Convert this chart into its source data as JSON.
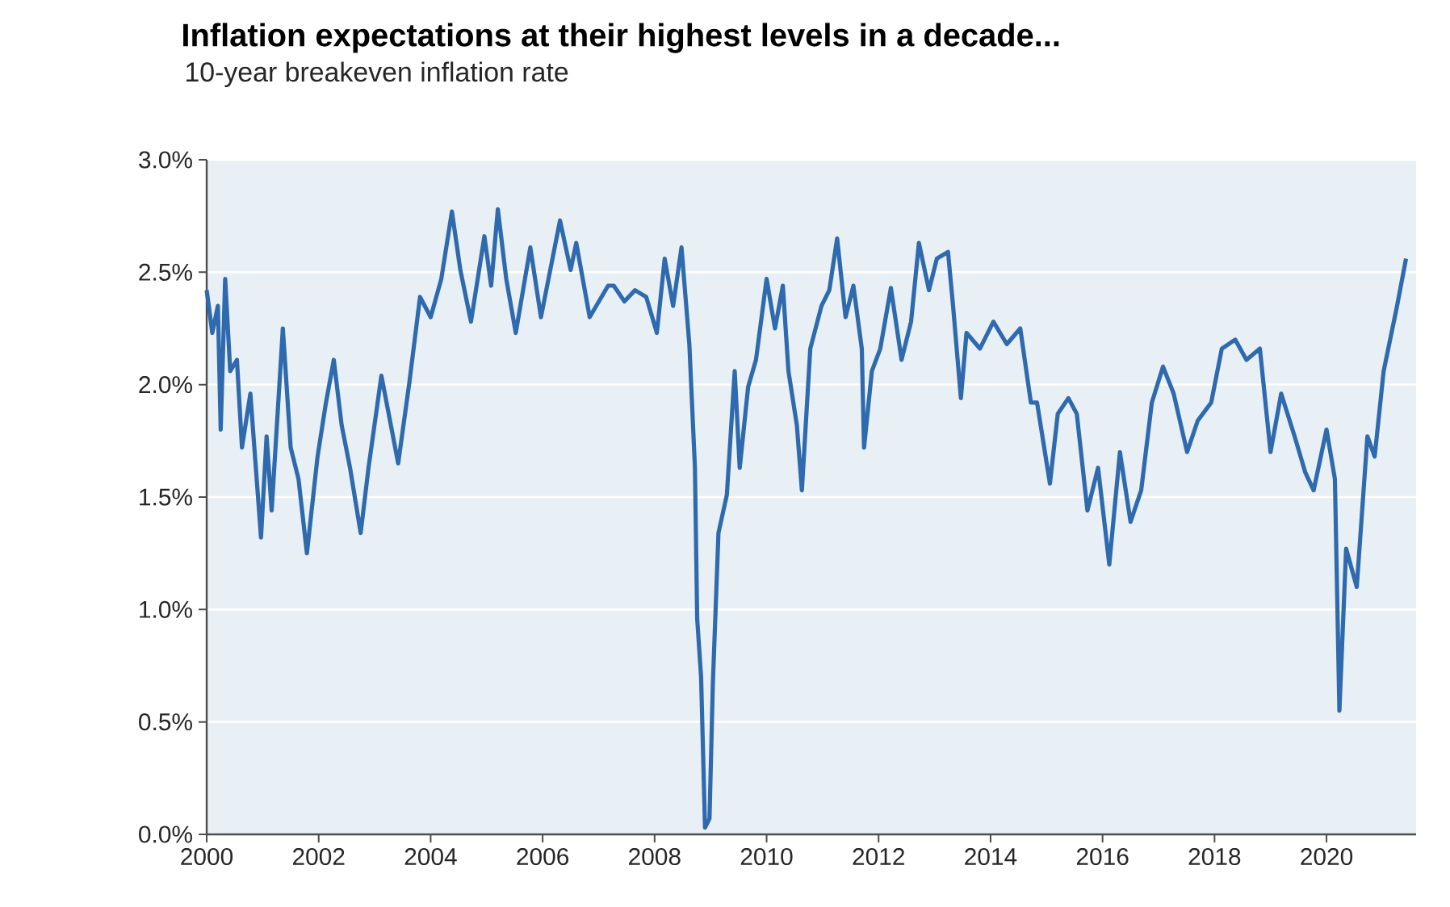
{
  "chart_data": {
    "type": "line",
    "title": "Inflation expectations at their highest levels in a decade...",
    "subtitle": "10-year breakeven inflation rate",
    "x": [
      2000.0,
      2000.1,
      2000.2,
      2000.25,
      2000.33,
      2000.42,
      2000.54,
      2000.63,
      2000.78,
      2000.97,
      2001.07,
      2001.16,
      2001.36,
      2001.5,
      2001.64,
      2001.79,
      2001.98,
      2002.13,
      2002.27,
      2002.41,
      2002.56,
      2002.75,
      2002.89,
      2003.12,
      2003.42,
      2003.62,
      2003.81,
      2004.0,
      2004.19,
      2004.38,
      2004.53,
      2004.72,
      2004.96,
      2005.08,
      2005.2,
      2005.35,
      2005.52,
      2005.78,
      2005.97,
      2006.31,
      2006.5,
      2006.6,
      2006.84,
      2007.17,
      2007.27,
      2007.46,
      2007.65,
      2007.85,
      2008.04,
      2008.18,
      2008.33,
      2008.48,
      2008.62,
      2008.72,
      2008.76,
      2008.83,
      2008.9,
      2008.98,
      2009.04,
      2009.14,
      2009.29,
      2009.43,
      2009.52,
      2009.67,
      2009.81,
      2010.0,
      2010.15,
      2010.29,
      2010.39,
      2010.54,
      2010.63,
      2010.78,
      2010.98,
      2011.12,
      2011.26,
      2011.41,
      2011.55,
      2011.7,
      2011.74,
      2011.88,
      2012.03,
      2012.22,
      2012.41,
      2012.58,
      2012.72,
      2012.9,
      2013.04,
      2013.24,
      2013.33,
      2013.47,
      2013.57,
      2013.81,
      2014.05,
      2014.29,
      2014.53,
      2014.72,
      2014.83,
      2015.06,
      2015.2,
      2015.39,
      2015.54,
      2015.73,
      2015.92,
      2016.12,
      2016.31,
      2016.5,
      2016.69,
      2016.88,
      2017.08,
      2017.27,
      2017.51,
      2017.7,
      2017.94,
      2018.13,
      2018.37,
      2018.57,
      2018.81,
      2019.0,
      2019.19,
      2019.43,
      2019.62,
      2019.77,
      2020.0,
      2020.15,
      2020.23,
      2020.35,
      2020.54,
      2020.73,
      2020.86,
      2021.02,
      2021.26,
      2021.42
    ],
    "series": [
      {
        "color": "#2e6aad",
        "values": [
          2.42,
          2.23,
          2.35,
          1.8,
          2.47,
          2.06,
          2.11,
          1.72,
          1.96,
          1.32,
          1.77,
          1.44,
          2.25,
          1.72,
          1.58,
          1.25,
          1.68,
          1.92,
          2.11,
          1.82,
          1.63,
          1.34,
          1.63,
          2.04,
          1.65,
          2.01,
          2.39,
          2.3,
          2.47,
          2.77,
          2.51,
          2.28,
          2.66,
          2.44,
          2.78,
          2.47,
          2.23,
          2.61,
          2.3,
          2.73,
          2.51,
          2.63,
          2.3,
          2.44,
          2.44,
          2.37,
          2.42,
          2.39,
          2.23,
          2.56,
          2.35,
          2.61,
          2.18,
          1.63,
          0.96,
          0.7,
          0.03,
          0.07,
          0.67,
          1.34,
          1.51,
          2.06,
          1.63,
          1.99,
          2.11,
          2.47,
          2.25,
          2.44,
          2.06,
          1.82,
          1.53,
          2.16,
          2.35,
          2.42,
          2.65,
          2.3,
          2.44,
          2.16,
          1.72,
          2.06,
          2.16,
          2.43,
          2.11,
          2.28,
          2.63,
          2.42,
          2.56,
          2.59,
          2.35,
          1.94,
          2.23,
          2.16,
          2.28,
          2.18,
          2.25,
          1.92,
          1.92,
          1.56,
          1.87,
          1.94,
          1.87,
          1.44,
          1.63,
          1.2,
          1.7,
          1.39,
          1.53,
          1.92,
          2.08,
          1.96,
          1.7,
          1.84,
          1.92,
          2.16,
          2.2,
          2.11,
          2.16,
          1.7,
          1.96,
          1.77,
          1.61,
          1.53,
          1.8,
          1.58,
          0.55,
          1.27,
          1.1,
          1.77,
          1.68,
          2.06,
          2.35,
          2.56
        ]
      }
    ],
    "xlim": [
      2000,
      2021.6
    ],
    "xticks": [
      2000,
      2002,
      2004,
      2006,
      2008,
      2010,
      2012,
      2014,
      2016,
      2018,
      2020
    ],
    "ylim": [
      0,
      3
    ],
    "yticks": [
      {
        "value": 0,
        "label": "0.0%"
      },
      {
        "value": 0.5,
        "label": "0.5%"
      },
      {
        "value": 1,
        "label": "1.0%"
      },
      {
        "value": 1.5,
        "label": "1.5%"
      },
      {
        "value": 2,
        "label": "2.0%"
      },
      {
        "value": 2.5,
        "label": "2.5%"
      },
      {
        "value": 3,
        "label": "3.0%"
      }
    ],
    "grid": "y",
    "marker": "none",
    "line_style": "solid"
  }
}
